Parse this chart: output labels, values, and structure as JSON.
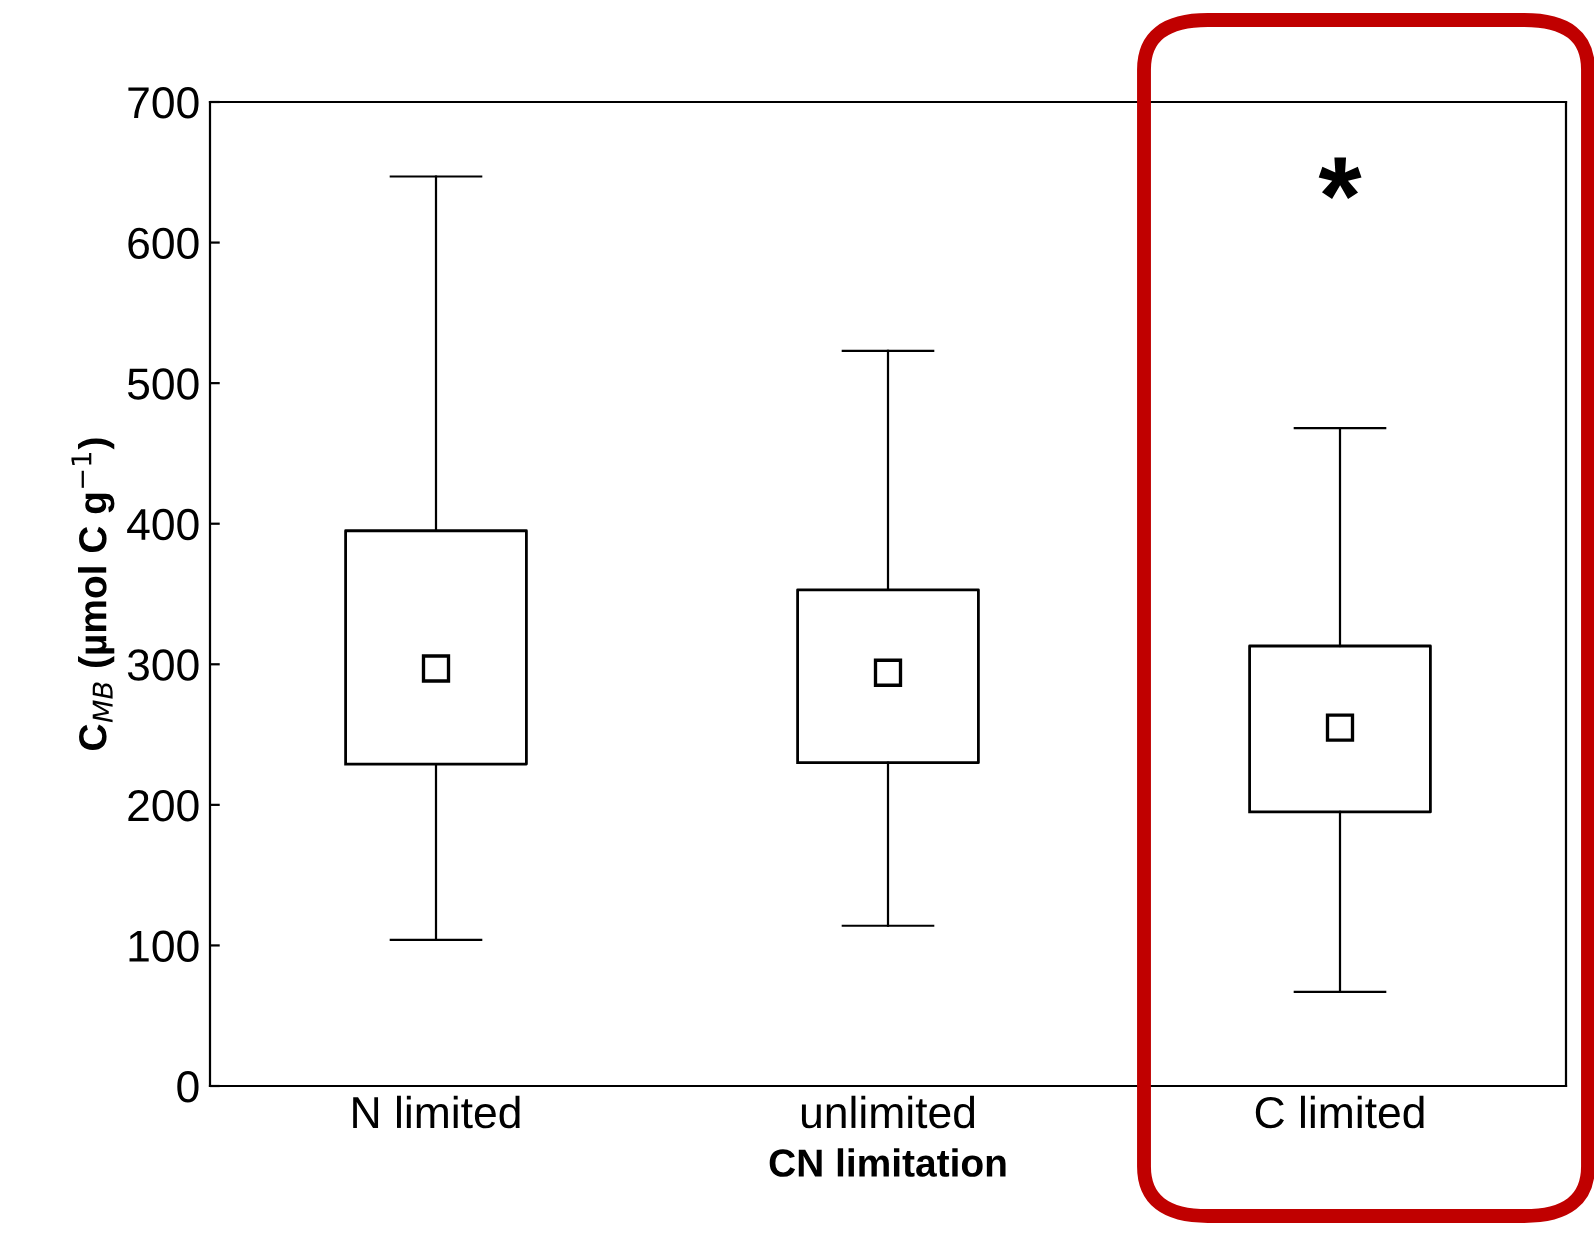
{
  "chart_data": {
    "type": "box",
    "xlabel": "CN limitation",
    "ylabel": "C$_{MB}$ (µmol C g$^{−1}$)",
    "categories": [
      "N limited",
      "unlimited",
      "C limited"
    ],
    "boxes": [
      {
        "low": 104,
        "q1": 229,
        "median": 297,
        "q3": 395,
        "high": 647
      },
      {
        "low": 114,
        "q1": 230,
        "median": 294,
        "q3": 353,
        "high": 523
      },
      {
        "low": 67,
        "q1": 195,
        "median": 255,
        "q3": 313,
        "high": 468
      }
    ],
    "ylim": [
      0,
      700
    ],
    "yticks": [
      0,
      100,
      200,
      300,
      400,
      500,
      600,
      700
    ],
    "grid": false,
    "marker": "square",
    "annotations": [
      "*"
    ]
  }
}
